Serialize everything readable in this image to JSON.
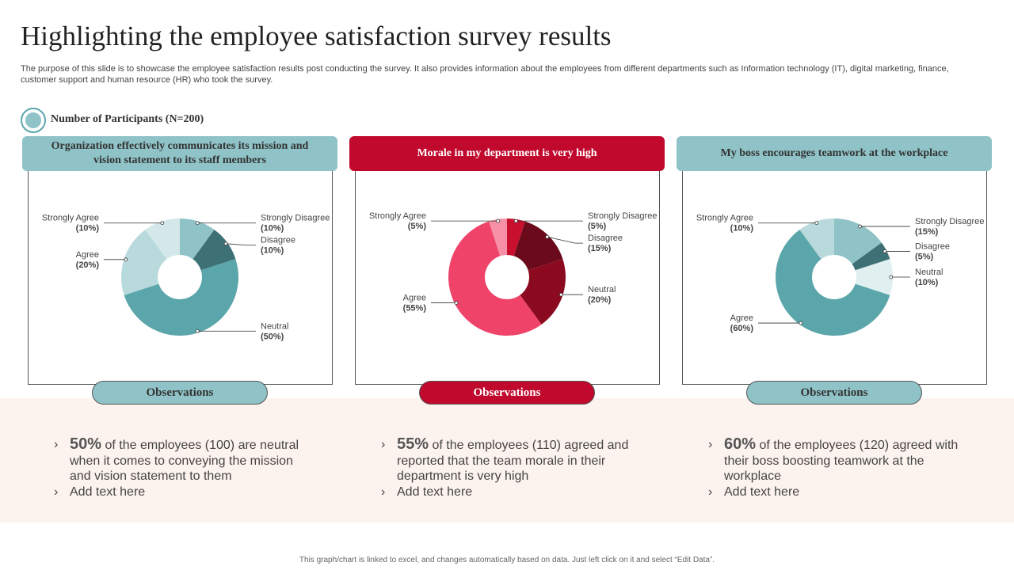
{
  "header": {
    "title": "Highlighting the employee satisfaction survey results",
    "description": "The purpose of this slide is to showcase the employee satisfaction results post conducting the survey. It also provides information about the employees from different departments such as Information technology (IT), digital marketing, finance, customer support and human resource (HR) who took the survey."
  },
  "participants": "Number of Participants (N=200)",
  "chart_data": [
    {
      "type": "donut",
      "title": "Organization effectively communicates its mission and vision statement to its staff members",
      "theme": "#8fc3c7",
      "title_color": "#333333",
      "categories": [
        "Strongly Disagree",
        "Disagree",
        "Neutral",
        "Agree",
        "Strongly Agree"
      ],
      "values": [
        10,
        10,
        50,
        20,
        10
      ],
      "value_labels": [
        "(10%)",
        "(10%)",
        "(50%)",
        "(20%)",
        "(10%)"
      ],
      "colors": [
        "#8fc3c7",
        "#3d7175",
        "#5ba6ab",
        "#b9dadc",
        "#d4e8e9"
      ]
    },
    {
      "type": "donut",
      "title": "Morale in my department is very high",
      "theme": "#c0092c",
      "title_color": "#ffffff",
      "categories": [
        "Strongly Disagree",
        "Disagree",
        "Neutral",
        "Agree",
        "Strongly Agree"
      ],
      "values": [
        5,
        15,
        20,
        55,
        5
      ],
      "value_labels": [
        "(5%)",
        "(15%)",
        "(20%)",
        "(55%)",
        "(5%)"
      ],
      "colors": [
        "#c8102e",
        "#6b0a1a",
        "#8b0a20",
        "#f0436a",
        "#f590a6"
      ]
    },
    {
      "type": "donut",
      "title": "My boss encourages teamwork at the workplace",
      "theme": "#8fc3c7",
      "title_color": "#333333",
      "categories": [
        "Strongly Disagree",
        "Disagree",
        "Neutral",
        "Agree",
        "Strongly Agree"
      ],
      "values": [
        15,
        5,
        10,
        60,
        10
      ],
      "value_labels": [
        "(15%)",
        "(5%)",
        "(10%)",
        "(60%)",
        "(10%)"
      ],
      "colors": [
        "#8fc3c7",
        "#3d7175",
        "#e0eff0",
        "#5ba6ab",
        "#b9dadc"
      ]
    }
  ],
  "observations": [
    {
      "heading": "Observations",
      "points": [
        {
          "highlight": "50%",
          "text": "of the employees (100) are neutral when it comes to conveying the mission and vision statement to them"
        },
        {
          "text": "Add text here"
        }
      ]
    },
    {
      "heading": "Observations",
      "points": [
        {
          "highlight": "55%",
          "text": "of the employees (110) agreed and reported that the team morale in their department is very high"
        },
        {
          "text": "Add text here"
        }
      ]
    },
    {
      "heading": "Observations",
      "points": [
        {
          "highlight": "60%",
          "text": "of the employees (120) agreed with their boss boosting teamwork at the workplace"
        },
        {
          "text": "Add text here"
        }
      ]
    }
  ],
  "footer": "This graph/chart is linked to excel, and changes automatically based on data. Just left click on it and select “Edit Data”."
}
